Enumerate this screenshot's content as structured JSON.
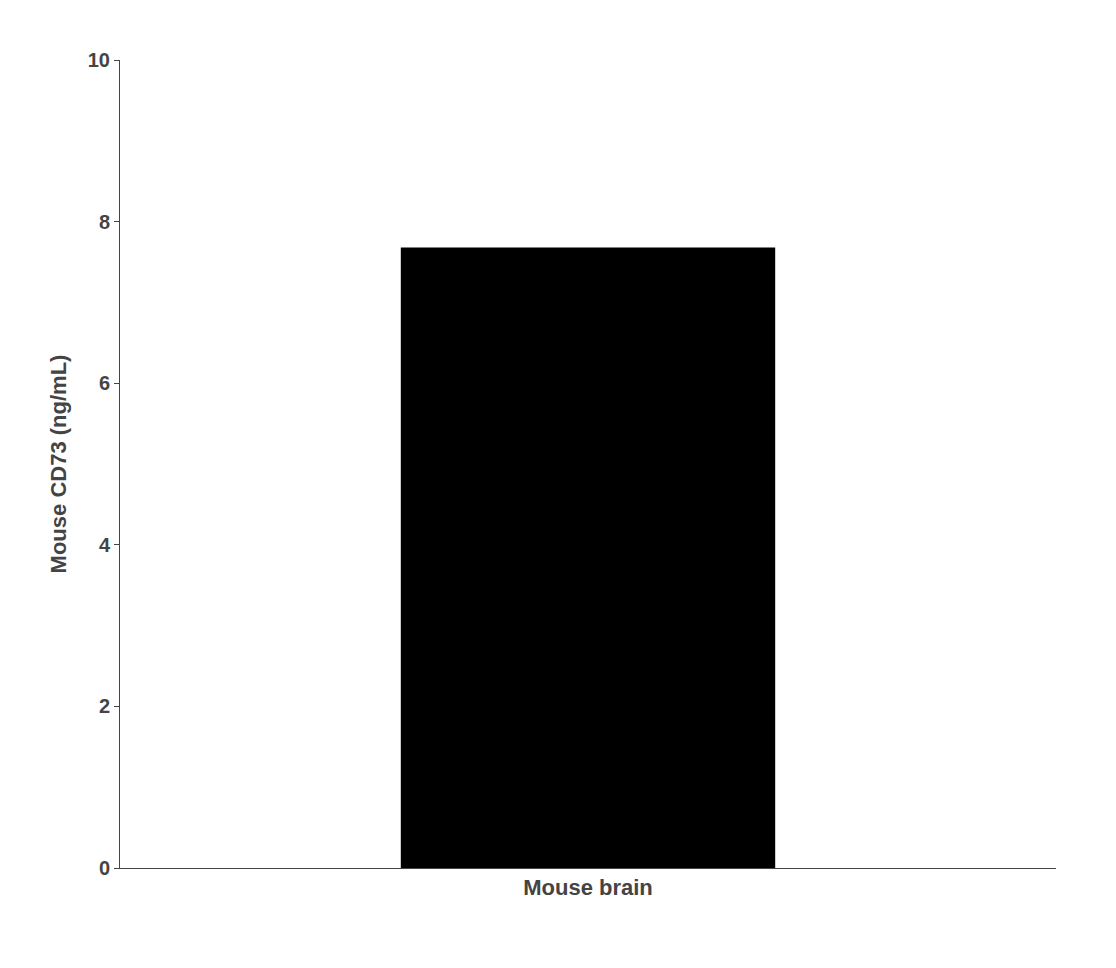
{
  "chart_data": {
    "type": "bar",
    "categories": [
      "Mouse brain"
    ],
    "values": [
      7.68
    ],
    "color": "#000000",
    "ylabel": "Mouse CD73 (ng/mL)",
    "ylim": [
      0,
      10
    ],
    "yticks": [
      0,
      2,
      4,
      6,
      8,
      10
    ],
    "grid": false
  }
}
